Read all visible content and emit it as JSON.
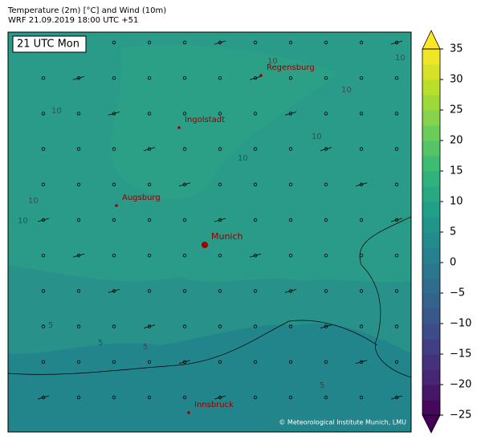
{
  "header": {
    "title": "Temperature (2m) [°C] and Wind (10m)",
    "subtitle": "WRF 21.09.2019 18:00 UTC +51"
  },
  "map": {
    "time_label": "21 UTC Mon",
    "cities": [
      {
        "name": "Regensburg"
      },
      {
        "name": "Ingolstadt"
      },
      {
        "name": "Augsburg"
      },
      {
        "name": "Munich"
      },
      {
        "name": "Innsbruck"
      }
    ],
    "contour_labels": [
      10,
      10,
      10,
      10,
      10,
      10,
      10,
      10,
      5,
      5,
      5,
      5
    ],
    "copyright": "© Meteorological Institute Munich, LMU"
  },
  "colorbar": {
    "lim": [
      -25,
      35
    ],
    "ticks": [
      {
        "value": -25,
        "label": "−25"
      },
      {
        "value": -20,
        "label": "−20"
      },
      {
        "value": -15,
        "label": "−15"
      },
      {
        "value": -10,
        "label": "−10"
      },
      {
        "value": -5,
        "label": "−5"
      },
      0,
      5,
      10,
      15,
      20,
      25,
      30,
      35
    ],
    "step": 2.5,
    "colors": [
      "#440154",
      "#482878",
      "#3e4989",
      "#31688e",
      "#26828e",
      "#1f9e89",
      "#35b779",
      "#6ece58",
      "#b5de2b",
      "#fde725"
    ]
  }
}
